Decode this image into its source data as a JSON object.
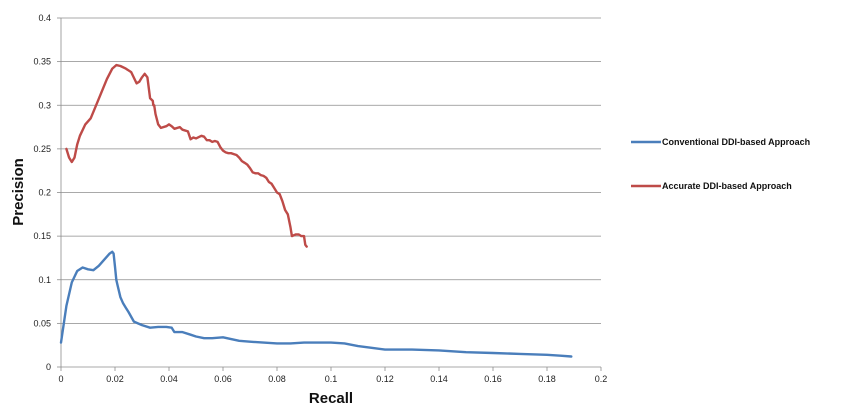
{
  "chart_data": {
    "type": "line",
    "title": "",
    "xlabel": "Recall",
    "ylabel": "Precision",
    "xlim": [
      0,
      0.2
    ],
    "ylim": [
      0,
      0.4
    ],
    "xticks": [
      "0",
      "0.02",
      "0.04",
      "0.06",
      "0.08",
      "0.1",
      "0.12",
      "0.14",
      "0.16",
      "0.18",
      "0.2"
    ],
    "yticks": [
      "0",
      "0.05",
      "0.1",
      "0.15",
      "0.2",
      "0.25",
      "0.3",
      "0.35",
      "0.4"
    ],
    "grid": "horizontal",
    "legend_position": "right",
    "series": [
      {
        "name": "Conventional DDI-based Approach",
        "color": "#4a7ebb",
        "x": [
          0,
          0.002,
          0.004,
          0.006,
          0.008,
          0.01,
          0.012,
          0.014,
          0.016,
          0.018,
          0.019,
          0.0195,
          0.02,
          0.0205,
          0.021,
          0.022,
          0.023,
          0.024,
          0.025,
          0.027,
          0.03,
          0.033,
          0.036,
          0.039,
          0.041,
          0.042,
          0.043,
          0.045,
          0.048,
          0.05,
          0.053,
          0.056,
          0.06,
          0.063,
          0.066,
          0.07,
          0.075,
          0.08,
          0.085,
          0.09,
          0.1,
          0.105,
          0.11,
          0.115,
          0.12,
          0.13,
          0.14,
          0.15,
          0.16,
          0.17,
          0.18,
          0.185,
          0.189
        ],
        "y": [
          0.028,
          0.07,
          0.097,
          0.11,
          0.114,
          0.112,
          0.111,
          0.116,
          0.123,
          0.13,
          0.132,
          0.13,
          0.115,
          0.1,
          0.093,
          0.08,
          0.073,
          0.068,
          0.063,
          0.052,
          0.048,
          0.045,
          0.046,
          0.046,
          0.045,
          0.04,
          0.04,
          0.04,
          0.037,
          0.035,
          0.033,
          0.033,
          0.034,
          0.032,
          0.03,
          0.029,
          0.028,
          0.027,
          0.027,
          0.028,
          0.028,
          0.027,
          0.024,
          0.022,
          0.02,
          0.02,
          0.019,
          0.017,
          0.016,
          0.015,
          0.014,
          0.013,
          0.012
        ]
      },
      {
        "name": "Accurate DDI-based Approach",
        "color": "#be4b48",
        "x": [
          0.002,
          0.003,
          0.004,
          0.005,
          0.006,
          0.007,
          0.009,
          0.011,
          0.013,
          0.015,
          0.017,
          0.019,
          0.0205,
          0.022,
          0.024,
          0.026,
          0.028,
          0.029,
          0.03,
          0.031,
          0.032,
          0.033,
          0.034,
          0.0342,
          0.0345,
          0.035,
          0.036,
          0.037,
          0.039,
          0.04,
          0.041,
          0.042,
          0.044,
          0.045,
          0.047,
          0.048,
          0.049,
          0.05,
          0.052,
          0.053,
          0.054,
          0.055,
          0.056,
          0.057,
          0.058,
          0.059,
          0.06,
          0.061,
          0.062,
          0.063,
          0.064,
          0.065,
          0.066,
          0.067,
          0.068,
          0.069,
          0.07,
          0.071,
          0.072,
          0.073,
          0.074,
          0.075,
          0.076,
          0.077,
          0.078,
          0.079,
          0.08,
          0.081,
          0.082,
          0.083,
          0.084,
          0.085,
          0.0855,
          0.087,
          0.088,
          0.089,
          0.09,
          0.0905,
          0.091
        ],
        "y": [
          0.25,
          0.24,
          0.235,
          0.24,
          0.255,
          0.265,
          0.278,
          0.285,
          0.3,
          0.315,
          0.33,
          0.342,
          0.346,
          0.345,
          0.342,
          0.338,
          0.325,
          0.327,
          0.332,
          0.336,
          0.332,
          0.308,
          0.305,
          0.3,
          0.3,
          0.29,
          0.278,
          0.274,
          0.276,
          0.278,
          0.276,
          0.273,
          0.275,
          0.272,
          0.27,
          0.261,
          0.263,
          0.262,
          0.265,
          0.264,
          0.26,
          0.26,
          0.258,
          0.259,
          0.258,
          0.252,
          0.248,
          0.246,
          0.245,
          0.245,
          0.244,
          0.243,
          0.24,
          0.236,
          0.234,
          0.232,
          0.228,
          0.223,
          0.222,
          0.222,
          0.22,
          0.219,
          0.217,
          0.212,
          0.21,
          0.205,
          0.2,
          0.198,
          0.19,
          0.18,
          0.175,
          0.16,
          0.15,
          0.152,
          0.152,
          0.15,
          0.15,
          0.14,
          0.138
        ]
      }
    ]
  }
}
